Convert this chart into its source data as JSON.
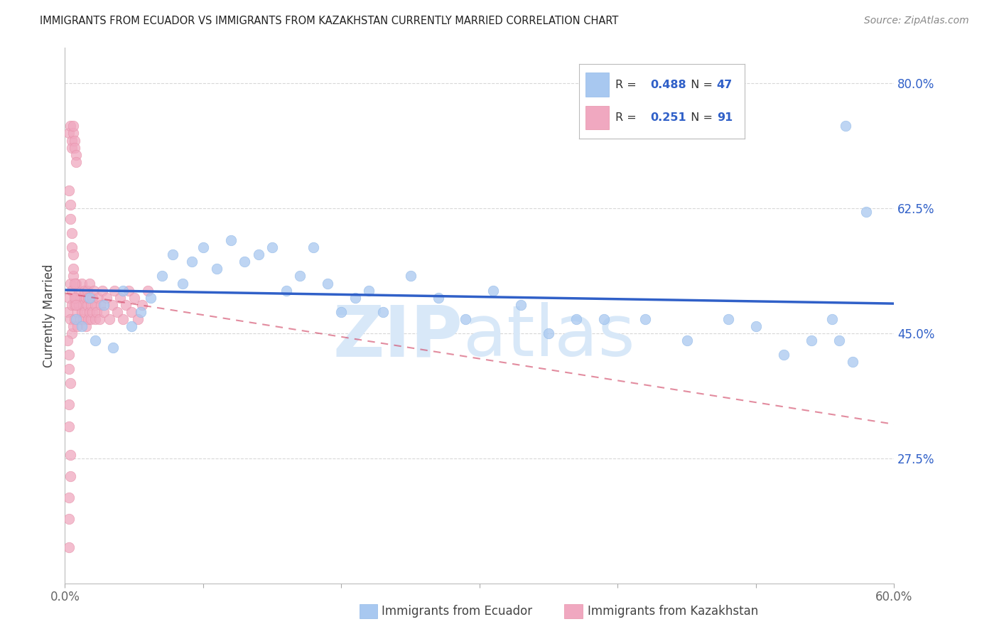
{
  "title": "IMMIGRANTS FROM ECUADOR VS IMMIGRANTS FROM KAZAKHSTAN CURRENTLY MARRIED CORRELATION CHART",
  "source": "Source: ZipAtlas.com",
  "ylabel_label": "Currently Married",
  "ytick_values": [
    0.275,
    0.45,
    0.625,
    0.8
  ],
  "ytick_labels": [
    "27.5%",
    "45.0%",
    "62.5%",
    "80.0%"
  ],
  "xmin": 0.0,
  "xmax": 0.6,
  "ymin": 0.1,
  "ymax": 0.85,
  "ecuador_R": 0.488,
  "ecuador_N": 47,
  "kazakhstan_R": 0.251,
  "kazakhstan_N": 91,
  "ecuador_color": "#a8c8f0",
  "ecuador_edge_color": "#90b8e8",
  "kazakhstan_color": "#f0a8c0",
  "kazakhstan_edge_color": "#e890a8",
  "trendline_ecuador_color": "#3060c8",
  "trendline_kazakhstan_color": "#d04060",
  "legend_box_color": "#e8f0fc",
  "r_value_color": "#3060c8",
  "n_value_color": "#3060c8",
  "watermark_color": "#d8e8f8",
  "title_color": "#222222",
  "source_color": "#888888",
  "ytick_color": "#3060c8",
  "xtick_color": "#666666",
  "grid_color": "#d8d8d8",
  "ecuador_x": [
    0.008,
    0.012,
    0.018,
    0.022,
    0.028,
    0.035,
    0.042,
    0.048,
    0.055,
    0.062,
    0.07,
    0.078,
    0.085,
    0.092,
    0.1,
    0.11,
    0.12,
    0.13,
    0.14,
    0.15,
    0.16,
    0.17,
    0.18,
    0.19,
    0.2,
    0.21,
    0.22,
    0.23,
    0.25,
    0.27,
    0.29,
    0.31,
    0.33,
    0.35,
    0.37,
    0.39,
    0.42,
    0.45,
    0.48,
    0.5,
    0.52,
    0.54,
    0.56,
    0.555,
    0.57,
    0.58,
    0.565
  ],
  "ecuador_y": [
    0.47,
    0.46,
    0.5,
    0.44,
    0.49,
    0.43,
    0.51,
    0.46,
    0.48,
    0.5,
    0.53,
    0.56,
    0.52,
    0.55,
    0.57,
    0.54,
    0.58,
    0.55,
    0.56,
    0.57,
    0.51,
    0.53,
    0.57,
    0.52,
    0.48,
    0.5,
    0.51,
    0.48,
    0.53,
    0.5,
    0.47,
    0.51,
    0.49,
    0.45,
    0.47,
    0.47,
    0.47,
    0.44,
    0.47,
    0.46,
    0.42,
    0.44,
    0.44,
    0.47,
    0.41,
    0.62,
    0.74
  ],
  "kazakhstan_x": [
    0.002,
    0.003,
    0.004,
    0.004,
    0.005,
    0.005,
    0.005,
    0.006,
    0.006,
    0.007,
    0.007,
    0.008,
    0.008,
    0.009,
    0.009,
    0.01,
    0.01,
    0.011,
    0.011,
    0.012,
    0.012,
    0.013,
    0.013,
    0.014,
    0.014,
    0.015,
    0.015,
    0.016,
    0.016,
    0.017,
    0.017,
    0.018,
    0.018,
    0.019,
    0.019,
    0.02,
    0.02,
    0.021,
    0.022,
    0.022,
    0.023,
    0.024,
    0.025,
    0.026,
    0.027,
    0.028,
    0.03,
    0.032,
    0.034,
    0.036,
    0.038,
    0.04,
    0.042,
    0.044,
    0.046,
    0.048,
    0.05,
    0.053,
    0.056,
    0.06,
    0.003,
    0.004,
    0.005,
    0.005,
    0.006,
    0.006,
    0.007,
    0.007,
    0.008,
    0.008,
    0.003,
    0.004,
    0.004,
    0.005,
    0.005,
    0.006,
    0.006,
    0.007,
    0.007,
    0.008,
    0.002,
    0.003,
    0.003,
    0.004,
    0.003,
    0.003,
    0.004,
    0.004,
    0.003,
    0.003,
    0.003
  ],
  "kazakhstan_y": [
    0.48,
    0.5,
    0.52,
    0.47,
    0.49,
    0.45,
    0.51,
    0.46,
    0.53,
    0.47,
    0.49,
    0.5,
    0.52,
    0.48,
    0.46,
    0.49,
    0.51,
    0.47,
    0.5,
    0.48,
    0.52,
    0.47,
    0.49,
    0.51,
    0.48,
    0.5,
    0.46,
    0.49,
    0.51,
    0.47,
    0.5,
    0.48,
    0.52,
    0.47,
    0.49,
    0.5,
    0.48,
    0.51,
    0.47,
    0.49,
    0.48,
    0.5,
    0.47,
    0.49,
    0.51,
    0.48,
    0.5,
    0.47,
    0.49,
    0.51,
    0.48,
    0.5,
    0.47,
    0.49,
    0.51,
    0.48,
    0.5,
    0.47,
    0.49,
    0.51,
    0.73,
    0.74,
    0.72,
    0.71,
    0.73,
    0.74,
    0.72,
    0.71,
    0.7,
    0.69,
    0.65,
    0.63,
    0.61,
    0.59,
    0.57,
    0.56,
    0.54,
    0.52,
    0.5,
    0.49,
    0.44,
    0.42,
    0.4,
    0.38,
    0.35,
    0.32,
    0.28,
    0.25,
    0.22,
    0.19,
    0.15
  ]
}
